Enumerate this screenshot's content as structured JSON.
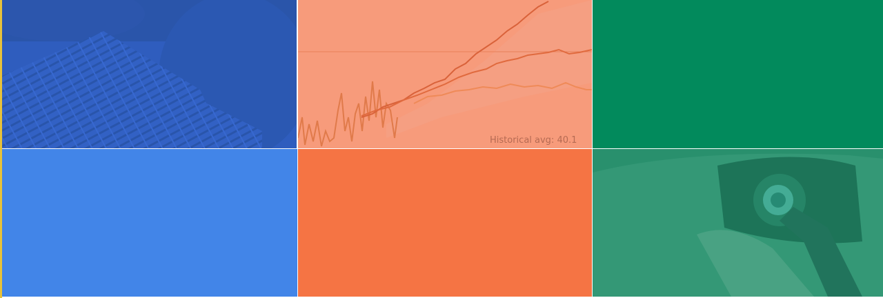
{
  "chart_tile": {
    "caption": "Historical avg: 40.1"
  }
}
